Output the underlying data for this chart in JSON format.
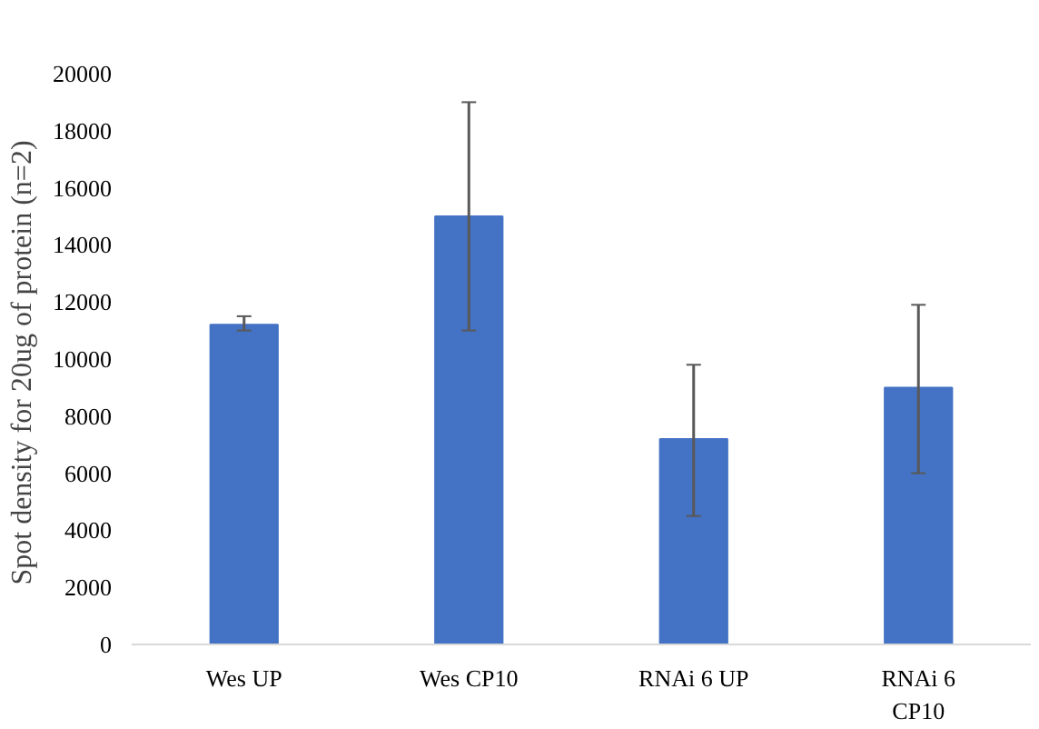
{
  "chart_data": {
    "type": "bar",
    "ylabel": "Spot density  for 20ug of protein (n=2)",
    "categories": [
      "Wes UP",
      "Wes CP10",
      "RNAi 6 UP",
      "RNAi 6\nCP10"
    ],
    "values": [
      11200,
      15000,
      7200,
      9000
    ],
    "color": "#4472c4",
    "errors": [
      [
        11000,
        11500
      ],
      [
        11000,
        19000
      ],
      [
        4500,
        9800
      ],
      [
        6000,
        11900
      ]
    ],
    "ylim": [
      0,
      20000
    ],
    "yticks": [
      0,
      2000,
      4000,
      6000,
      8000,
      10000,
      12000,
      14000,
      16000,
      18000,
      20000
    ],
    "grid": false
  }
}
